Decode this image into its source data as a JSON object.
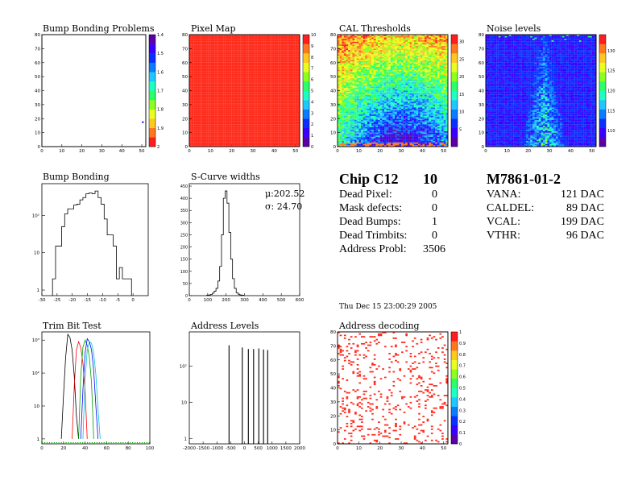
{
  "panels": {
    "bump_problems": {
      "title": "Bump Bonding Problems"
    },
    "pixel_map": {
      "title": "Pixel Map"
    },
    "cal_thresholds": {
      "title": "CAL Thresholds"
    },
    "noise_levels": {
      "title": "Noise levels"
    },
    "bump_bonding": {
      "title": "Bump Bonding"
    },
    "scurve": {
      "title": "S-Curve widths",
      "mu": "μ:202.52",
      "sigma": "σ: 24.70"
    },
    "trim_bit": {
      "title": "Trim Bit Test"
    },
    "address_levels": {
      "title": "Address Levels"
    },
    "address_decoding": {
      "title": "Address decoding"
    }
  },
  "chip_summary": {
    "title": "Chip C12",
    "title_value": "10",
    "rows": [
      {
        "label": "Dead Pixel:",
        "value": "0"
      },
      {
        "label": "Mask defects:",
        "value": "0"
      },
      {
        "label": "Dead Bumps:",
        "value": "1"
      },
      {
        "label": "Dead Trimbits:",
        "value": "0"
      },
      {
        "label": "Address Probl:",
        "value": "3506"
      }
    ]
  },
  "module_summary": {
    "title": "M7861-01-2",
    "rows": [
      {
        "label": "VANA:",
        "value": "121 DAC"
      },
      {
        "label": "CALDEL:",
        "value": "89 DAC"
      },
      {
        "label": "VCAL:",
        "value": "199 DAC"
      },
      {
        "label": "VTHR:",
        "value": "96 DAC"
      }
    ]
  },
  "timestamp": "Thu Dec 15 23:00:29 2005",
  "colors": {
    "palette": [
      "#5b00a8",
      "#3a00ff",
      "#0a30ff",
      "#0a7cff",
      "#1ec8ff",
      "#1effc4",
      "#2bff6a",
      "#8cff1e",
      "#e8ff1e",
      "#ffc81e",
      "#ff781e",
      "#ff1e1e"
    ],
    "red_fill": "#ff2a1a",
    "blue_fill": "#2848f0"
  },
  "chart_data": [
    {
      "id": "bump_problems",
      "type": "heatmap",
      "x_range": [
        0,
        52
      ],
      "y_range": [
        0,
        80
      ],
      "x_ticks": [
        "0",
        "10",
        "20",
        "30",
        "40",
        "50"
      ],
      "y_ticks": [
        "0",
        "10",
        "20",
        "30",
        "40",
        "50",
        "60",
        "70",
        "80"
      ],
      "z_ticks": [
        "1.4",
        "1.5",
        "1.6",
        "1.7",
        "1.8",
        "1.9",
        "2"
      ],
      "z_range": [
        1.4,
        2.0
      ],
      "points": [
        {
          "x": 50,
          "y": 17,
          "z": 1.9
        }
      ]
    },
    {
      "id": "pixel_map",
      "type": "heatmap",
      "x_range": [
        0,
        52
      ],
      "y_range": [
        0,
        80
      ],
      "x_ticks": [
        "0",
        "10",
        "20",
        "30",
        "40",
        "50"
      ],
      "y_ticks": [
        "0",
        "10",
        "20",
        "30",
        "40",
        "50",
        "60",
        "70",
        "80"
      ],
      "z_ticks": [
        "0",
        "1",
        "2",
        "3",
        "4",
        "5",
        "6",
        "7",
        "8",
        "9",
        "10"
      ],
      "z_range": [
        0,
        10
      ],
      "uniform_value": 10
    },
    {
      "id": "cal_thresholds",
      "type": "heatmap",
      "x_range": [
        0,
        52
      ],
      "y_range": [
        0,
        80
      ],
      "x_ticks": [
        "0",
        "10",
        "20",
        "30",
        "40",
        "50"
      ],
      "y_ticks": [
        "0",
        "10",
        "20",
        "30",
        "40",
        "50",
        "60",
        "70",
        "80"
      ],
      "z_ticks": [
        "5",
        "10",
        "15",
        "20",
        "25",
        "30"
      ],
      "z_range": [
        0,
        32
      ],
      "pattern": "high at top rows (~25-32), low near bottom centre (~5-10)"
    },
    {
      "id": "noise_levels",
      "type": "heatmap",
      "x_range": [
        0,
        52
      ],
      "y_range": [
        0,
        80
      ],
      "x_ticks": [
        "0",
        "10",
        "20",
        "30",
        "40",
        "50"
      ],
      "y_ticks": [
        "0",
        "10",
        "20",
        "30",
        "40",
        "50",
        "60",
        "70",
        "80"
      ],
      "z_ticks": [
        "110",
        "115",
        "120",
        "125",
        "130"
      ],
      "z_range": [
        106,
        134
      ],
      "pattern": "mostly ~108; hot streak around column 27 rising toward bottom"
    },
    {
      "id": "bump_bonding",
      "type": "bar",
      "ylog": true,
      "x_range": [
        -30,
        5
      ],
      "x_ticks": [
        "-30",
        "-25",
        "-20",
        "-15",
        "-10",
        "-5",
        "0"
      ],
      "y_ticks": [
        "1",
        "10",
        "10²"
      ],
      "bins": [
        {
          "x0": -26.5,
          "x1": -25.5,
          "y": 2
        },
        {
          "x0": -25.5,
          "x1": -24.5,
          "y": 15
        },
        {
          "x0": -24.5,
          "x1": -23.5,
          "y": 15
        },
        {
          "x0": -23.5,
          "x1": -22.5,
          "y": 50
        },
        {
          "x0": -22.5,
          "x1": -21.5,
          "y": 110
        },
        {
          "x0": -21.5,
          "x1": -20.5,
          "y": 150
        },
        {
          "x0": -20.5,
          "x1": -19.5,
          "y": 150
        },
        {
          "x0": -19.5,
          "x1": -18.5,
          "y": 190
        },
        {
          "x0": -18.5,
          "x1": -17.5,
          "y": 200
        },
        {
          "x0": -17.5,
          "x1": -16.5,
          "y": 260
        },
        {
          "x0": -16.5,
          "x1": -15.5,
          "y": 300
        },
        {
          "x0": -15.5,
          "x1": -14.5,
          "y": 380
        },
        {
          "x0": -14.5,
          "x1": -13.5,
          "y": 400
        },
        {
          "x0": -13.5,
          "x1": -12.5,
          "y": 380
        },
        {
          "x0": -12.5,
          "x1": -11.5,
          "y": 450
        },
        {
          "x0": -11.5,
          "x1": -10.5,
          "y": 300
        },
        {
          "x0": -10.5,
          "x1": -9.5,
          "y": 200
        },
        {
          "x0": -9.5,
          "x1": -8.5,
          "y": 80
        },
        {
          "x0": -8.5,
          "x1": -7.5,
          "y": 30
        },
        {
          "x0": -7.5,
          "x1": -6.5,
          "y": 30
        },
        {
          "x0": -6.5,
          "x1": -5.5,
          "y": 15
        },
        {
          "x0": -5.5,
          "x1": -4.5,
          "y": 2
        },
        {
          "x0": -4.5,
          "x1": -3.5,
          "y": 4
        },
        {
          "x0": -3.5,
          "x1": -2.5,
          "y": 2
        },
        {
          "x0": -1.5,
          "x1": -0.5,
          "y": 2
        }
      ]
    },
    {
      "id": "scurve",
      "type": "bar",
      "x_range": [
        0,
        600
      ],
      "y_range": [
        0,
        460
      ],
      "x_ticks": [
        "0",
        "100",
        "200",
        "300",
        "400",
        "500",
        "600"
      ],
      "y_ticks": [
        "0",
        "50",
        "100",
        "150",
        "200",
        "250",
        "300",
        "350",
        "400",
        "450"
      ],
      "bins": [
        {
          "x": 100,
          "y": 2
        },
        {
          "x": 110,
          "y": 3
        },
        {
          "x": 120,
          "y": 5
        },
        {
          "x": 130,
          "y": 10
        },
        {
          "x": 140,
          "y": 18
        },
        {
          "x": 150,
          "y": 30
        },
        {
          "x": 160,
          "y": 60
        },
        {
          "x": 170,
          "y": 120
        },
        {
          "x": 180,
          "y": 250
        },
        {
          "x": 190,
          "y": 400
        },
        {
          "x": 200,
          "y": 430
        },
        {
          "x": 210,
          "y": 380
        },
        {
          "x": 220,
          "y": 260
        },
        {
          "x": 230,
          "y": 150
        },
        {
          "x": 240,
          "y": 70
        },
        {
          "x": 250,
          "y": 30
        },
        {
          "x": 260,
          "y": 12
        },
        {
          "x": 270,
          "y": 6
        },
        {
          "x": 280,
          "y": 3
        },
        {
          "x": 290,
          "y": 2
        }
      ]
    },
    {
      "id": "trim_bit",
      "type": "line",
      "ylog": true,
      "x_range": [
        0,
        100
      ],
      "x_ticks": [
        "0",
        "20",
        "40",
        "60",
        "80",
        "100"
      ],
      "y_ticks": [
        "1",
        "10",
        "10²",
        "10³"
      ],
      "series": [
        {
          "color": "#000000",
          "x": [
            18,
            20,
            22,
            24,
            26,
            28,
            30,
            32,
            34
          ],
          "y": [
            1,
            20,
            300,
            1500,
            1200,
            500,
            80,
            5,
            1
          ]
        },
        {
          "color": "#ff0000",
          "x": [
            28,
            30,
            32,
            34,
            36,
            38,
            40,
            42
          ],
          "y": [
            1,
            40,
            500,
            900,
            600,
            200,
            30,
            1
          ]
        },
        {
          "color": "#00a000",
          "x": [
            34,
            36,
            38,
            40,
            42,
            44,
            46,
            48
          ],
          "y": [
            1,
            80,
            600,
            1000,
            700,
            300,
            50,
            1
          ]
        },
        {
          "color": "#0000ff",
          "x": [
            36,
            38,
            40,
            42,
            44,
            46,
            48,
            50,
            52
          ],
          "y": [
            1,
            30,
            400,
            1100,
            900,
            500,
            120,
            10,
            1
          ]
        },
        {
          "color": "#00c8c8",
          "x": [
            38,
            40,
            42,
            44,
            46,
            48,
            50,
            52,
            54
          ],
          "y": [
            1,
            60,
            500,
            900,
            800,
            400,
            90,
            8,
            1
          ]
        }
      ]
    },
    {
      "id": "address_levels",
      "type": "bar",
      "ylog": true,
      "x_range": [
        -2000,
        2000
      ],
      "x_ticks": [
        "-2000",
        "-1500",
        "-1000",
        "-500",
        "0",
        "500",
        "1000",
        "1500",
        "2000"
      ],
      "y_ticks": [
        "1",
        "10",
        "10²"
      ],
      "peaks": [
        {
          "x": -560,
          "y": 380
        },
        {
          "x": -80,
          "y": 330
        },
        {
          "x": 140,
          "y": 300
        },
        {
          "x": 330,
          "y": 300
        },
        {
          "x": 520,
          "y": 310
        },
        {
          "x": 690,
          "y": 290
        },
        {
          "x": 840,
          "y": 280
        }
      ]
    },
    {
      "id": "address_decoding",
      "type": "heatmap",
      "x_range": [
        0,
        52
      ],
      "y_range": [
        0,
        80
      ],
      "x_ticks": [
        "0",
        "10",
        "20",
        "30",
        "40",
        "50"
      ],
      "y_ticks": [
        "0",
        "10",
        "20",
        "30",
        "40",
        "50",
        "60",
        "70",
        "80"
      ],
      "z_ticks": [
        "0",
        "0.1",
        "0.2",
        "0.3",
        "0.4",
        "0.5",
        "0.6",
        "0.7",
        "0.8",
        "0.9",
        "1"
      ],
      "z_range": [
        0,
        1
      ],
      "pattern": "scattered defective pixels (z=1) over white background"
    }
  ]
}
